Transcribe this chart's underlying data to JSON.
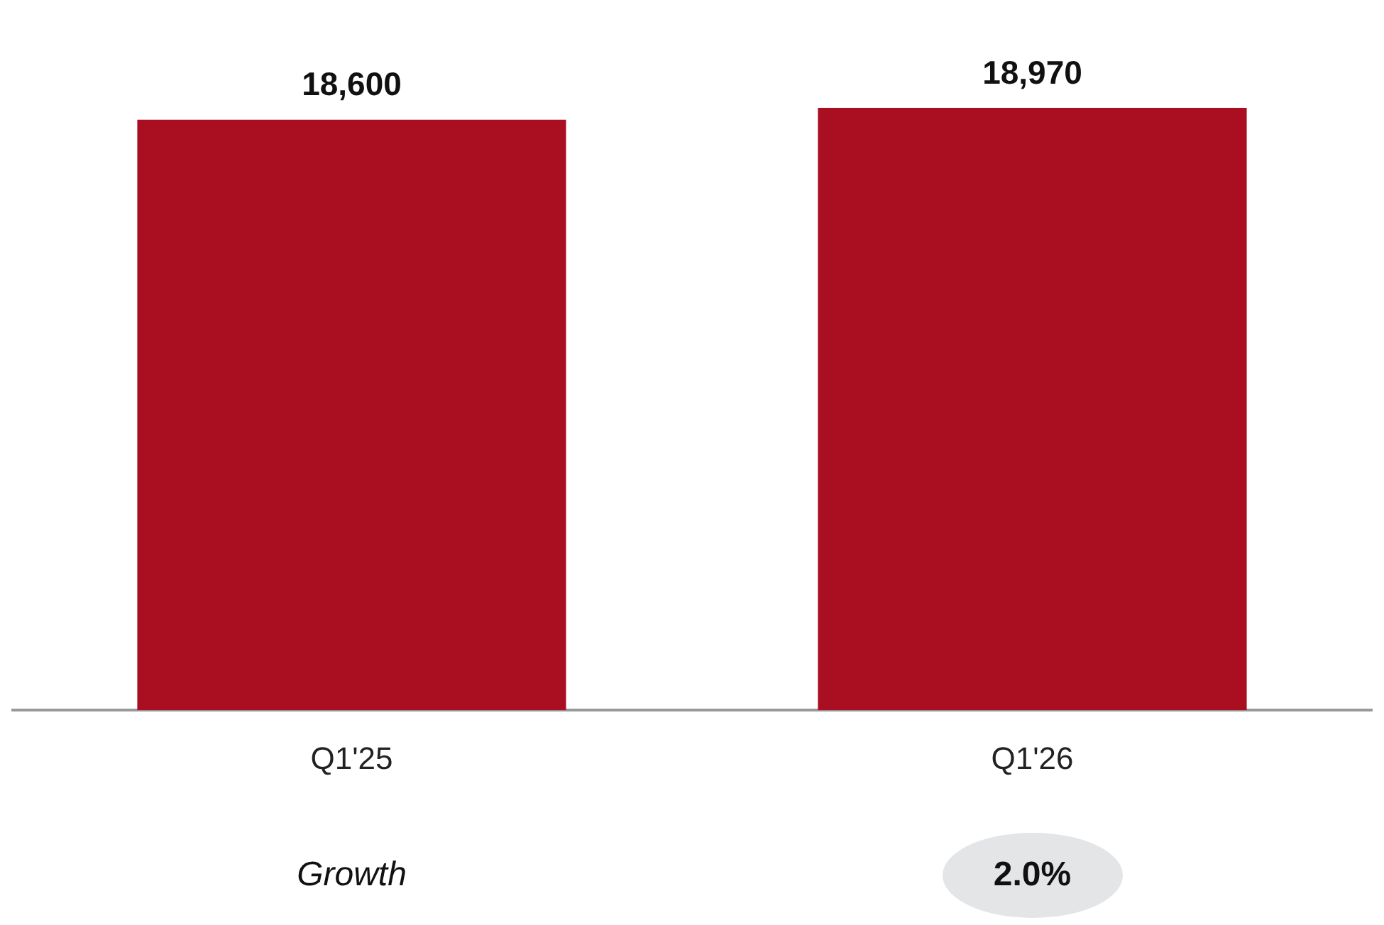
{
  "chart_data": {
    "type": "bar",
    "categories": [
      "Q1'25",
      "Q1'26"
    ],
    "values": [
      18600,
      18970
    ],
    "value_labels": [
      "18,600",
      "18,970"
    ],
    "color": "#a90f20",
    "annotations": [
      "Growth",
      "2.0%"
    ]
  }
}
